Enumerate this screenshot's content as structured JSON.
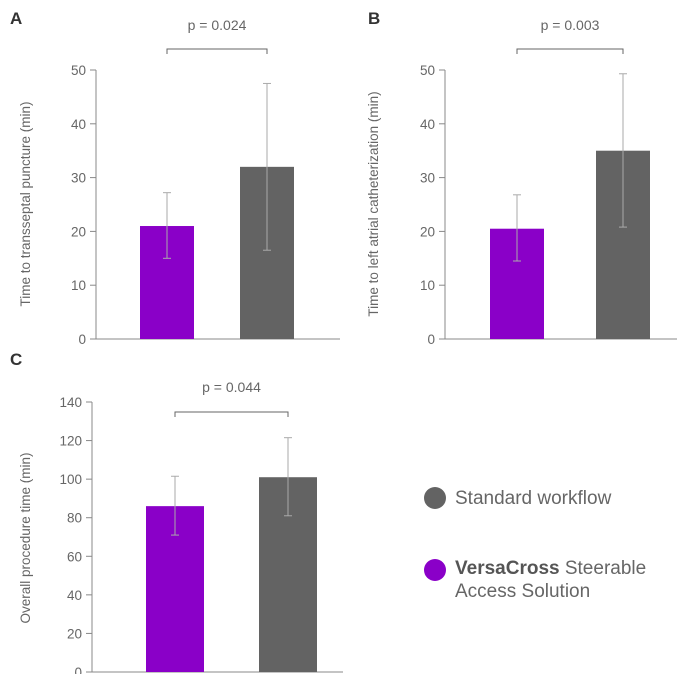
{
  "colors": {
    "versacross": "#8a00c8",
    "standard": "#636363",
    "axis": "#888888",
    "error": "#aaaaaa"
  },
  "legend": {
    "standard": {
      "label": "Standard workflow",
      "icon": "gray-circle-icon"
    },
    "versacross": {
      "bold": "VersaCross",
      "rest_line1": " Steerable",
      "line2": "Access Solution",
      "icon": "purple-circle-icon"
    }
  },
  "chart_data": [
    {
      "panel": "A",
      "type": "bar",
      "ylabel": "Time to transseptal puncture (min)",
      "ylim": [
        0,
        50
      ],
      "yticks": [
        0,
        10,
        20,
        30,
        40,
        50
      ],
      "pvalue_label": "p = 0.024",
      "series": [
        {
          "name": "VersaCross Steerable Access Solution",
          "value": 21,
          "err_low": 15,
          "err_high": 27.2
        },
        {
          "name": "Standard workflow",
          "value": 32,
          "err_low": 16.5,
          "err_high": 47.5
        }
      ]
    },
    {
      "panel": "B",
      "type": "bar",
      "ylabel": "Time to left atrial catheterization (min)",
      "ylim": [
        0,
        50
      ],
      "yticks": [
        0,
        10,
        20,
        30,
        40,
        50
      ],
      "pvalue_label": "p = 0.003",
      "series": [
        {
          "name": "VersaCross Steerable Access Solution",
          "value": 20.5,
          "err_low": 14.5,
          "err_high": 26.8
        },
        {
          "name": "Standard workflow",
          "value": 35,
          "err_low": 20.8,
          "err_high": 49.3
        }
      ]
    },
    {
      "panel": "C",
      "type": "bar",
      "ylabel": "Overall procedure time (min)",
      "ylim": [
        0,
        140
      ],
      "yticks": [
        0,
        20,
        40,
        60,
        80,
        100,
        120,
        140
      ],
      "pvalue_label": "p = 0.044",
      "series": [
        {
          "name": "VersaCross Steerable Access Solution",
          "value": 86,
          "err_low": 71,
          "err_high": 101.5
        },
        {
          "name": "Standard workflow",
          "value": 101,
          "err_low": 81,
          "err_high": 121.5
        }
      ]
    }
  ]
}
